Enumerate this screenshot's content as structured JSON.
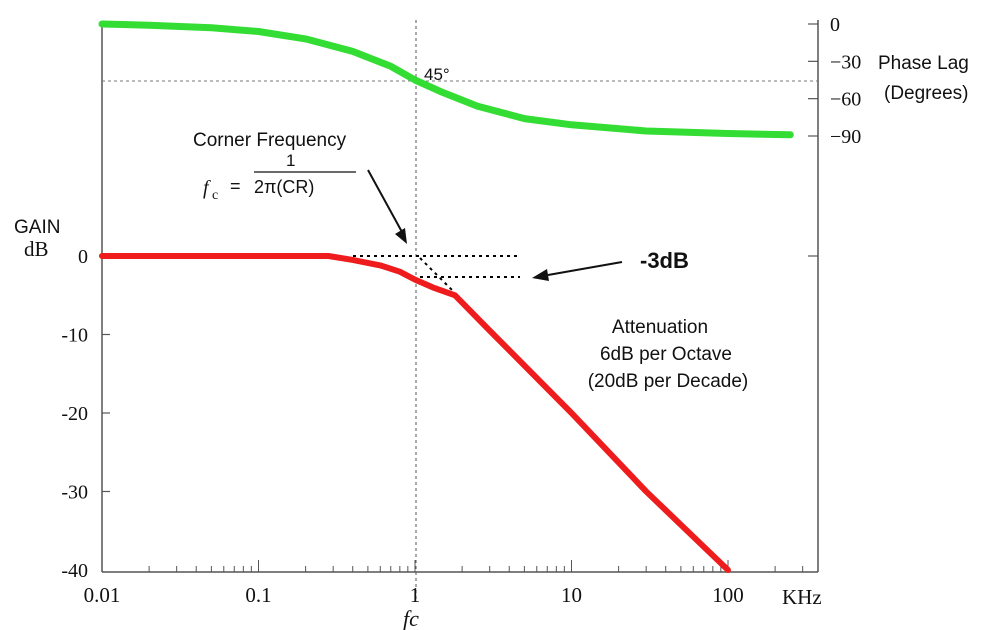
{
  "chart_data": {
    "type": "line",
    "x_scale": "log",
    "xlim": [
      0.01,
      250
    ],
    "x_ticks": [
      0.01,
      0.1,
      1,
      10,
      100
    ],
    "x_tick_labels": [
      "0.01",
      "0.1",
      "1",
      "10",
      "100"
    ],
    "x_unit": "KHz",
    "x_marker_label": "fc",
    "gain_axis": {
      "label_line1": "GAIN",
      "label_line2": "dB",
      "ylim": [
        -40,
        0
      ],
      "ticks": [
        0,
        -10,
        -20,
        -30,
        -40
      ],
      "tick_labels": [
        "0",
        "-10",
        "-20",
        "-30",
        "-40"
      ]
    },
    "phase_axis": {
      "label_line1": "Phase Lag",
      "label_line2": "(Degrees)",
      "ylim": [
        -90,
        0
      ],
      "ticks": [
        0,
        -30,
        -60,
        -90
      ],
      "tick_labels": [
        "0",
        "−30",
        "−60",
        "−90"
      ]
    },
    "series": [
      {
        "name": "",
        "axis": "gain",
        "color": "#ee1c1c",
        "x": [
          0.01,
          0.02,
          0.05,
          0.1,
          0.2,
          0.28,
          0.4,
          0.6,
          0.8,
          1,
          1.3,
          1.8,
          3,
          10,
          30,
          100
        ],
        "values": [
          0,
          0,
          0,
          0,
          0,
          0,
          -0.5,
          -1.2,
          -2,
          -3,
          -4,
          -5,
          -9.5,
          -20,
          -30,
          -40
        ]
      },
      {
        "name": "",
        "axis": "phase",
        "color": "#33dd33",
        "x": [
          0.01,
          0.02,
          0.05,
          0.1,
          0.2,
          0.4,
          0.7,
          1,
          1.5,
          2.5,
          5,
          10,
          30,
          100,
          250
        ],
        "values": [
          0,
          -1,
          -3,
          -6,
          -12,
          -22,
          -34,
          -45,
          -55,
          -66,
          -76,
          -81,
          -86,
          -88,
          -89
        ]
      }
    ],
    "annotations": {
      "phase_45_label": "45°",
      "corner_title": "Corner Frequency",
      "formula_lhs": "f",
      "formula_sub": "c",
      "formula_eq": "=",
      "formula_num": "1",
      "formula_den": "2π(CR)",
      "minus3db_label": "-3dB",
      "atten_line1": "Attenuation",
      "atten_line2": "6dB per Octave",
      "atten_line3": "(20dB per Decade)"
    },
    "colors": {
      "gain_curve": "#ee1c1c",
      "phase_curve": "#33dd33",
      "axes": "#555555",
      "dotted": "#000000"
    }
  }
}
